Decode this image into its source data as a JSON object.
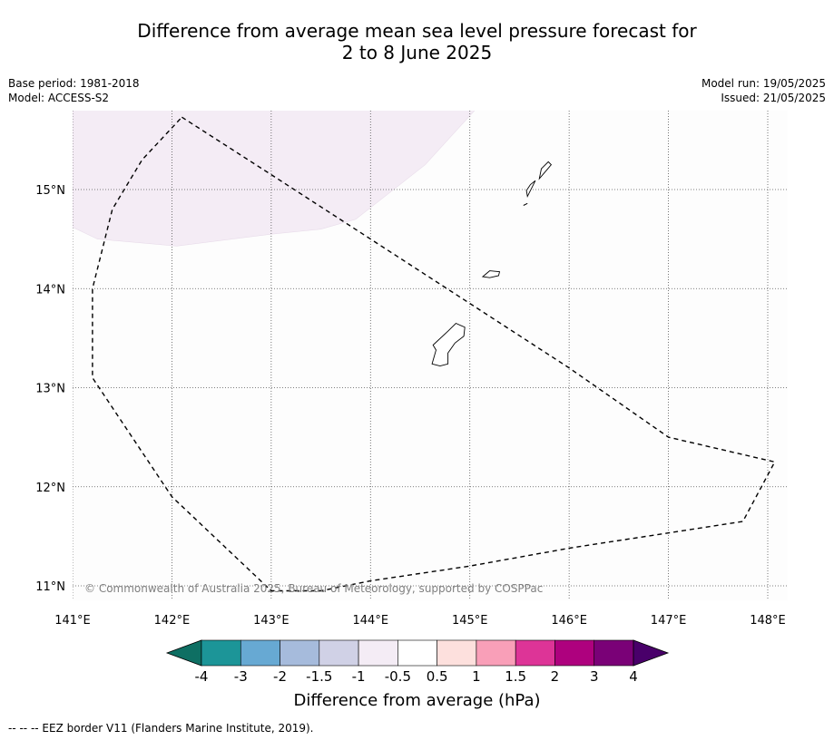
{
  "title": {
    "line1": "Difference from average mean sea level pressure forecast for",
    "line2": "2 to 8 June 2025"
  },
  "meta_left": {
    "base_period": "Base period: 1981-2018",
    "model": "Model: ACCESS-S2"
  },
  "meta_right": {
    "model_run": "Model run: 19/05/2025",
    "issued": "Issued: 21/05/2025"
  },
  "map": {
    "lon_range": [
      141.0,
      148.2
    ],
    "lat_range": [
      10.75,
      15.8
    ],
    "lon_ticks": [
      {
        "value": 141,
        "label": "141°E"
      },
      {
        "value": 142,
        "label": "142°E"
      },
      {
        "value": 143,
        "label": "143°E"
      },
      {
        "value": 144,
        "label": "144°E"
      },
      {
        "value": 145,
        "label": "145°E"
      },
      {
        "value": 146,
        "label": "146°E"
      },
      {
        "value": 147,
        "label": "147°E"
      },
      {
        "value": 148,
        "label": "148°E"
      }
    ],
    "lat_ticks": [
      {
        "value": 15,
        "label": "15°N"
      },
      {
        "value": 14,
        "label": "14°N"
      },
      {
        "value": 13,
        "label": "13°N"
      },
      {
        "value": 12,
        "label": "12°N"
      },
      {
        "value": 11,
        "label": "11°N"
      }
    ],
    "gridlines": true,
    "copyright": "© Commonwealth of Australia 2025, Bureau of Meteorology, supported by COSPPac",
    "anomaly_region": {
      "category": "-1 to -0.5",
      "color": "#f4ecf5",
      "lonlat": [
        [
          141.0,
          15.8
        ],
        [
          145.05,
          15.8
        ],
        [
          144.55,
          15.25
        ],
        [
          143.85,
          14.7
        ],
        [
          143.5,
          14.6
        ],
        [
          143.0,
          14.55
        ],
        [
          142.05,
          14.43
        ],
        [
          141.25,
          14.5
        ],
        [
          141.0,
          14.62
        ]
      ]
    },
    "eez_boundary": [
      [
        142.1,
        15.73
      ],
      [
        143.0,
        15.15
      ],
      [
        144.0,
        14.5
      ],
      [
        145.0,
        13.85
      ],
      [
        146.0,
        13.2
      ],
      [
        147.0,
        12.5
      ],
      [
        148.07,
        12.25
      ],
      [
        147.75,
        11.65
      ],
      [
        146.0,
        11.38
      ],
      [
        145.0,
        11.2
      ],
      [
        144.0,
        11.05
      ],
      [
        143.5,
        10.95
      ],
      [
        143.0,
        10.95
      ],
      [
        142.0,
        11.9
      ],
      [
        141.2,
        13.1
      ],
      [
        141.2,
        14.0
      ],
      [
        141.4,
        14.8
      ],
      [
        141.7,
        15.3
      ],
      [
        142.1,
        15.73
      ]
    ],
    "islands": [
      {
        "name": "Guam",
        "lonlat": [
          [
            144.62,
            13.24
          ],
          [
            144.66,
            13.38
          ],
          [
            144.63,
            13.43
          ],
          [
            144.78,
            13.57
          ],
          [
            144.86,
            13.65
          ],
          [
            144.95,
            13.61
          ],
          [
            144.94,
            13.52
          ],
          [
            144.85,
            13.45
          ],
          [
            144.78,
            13.35
          ],
          [
            144.78,
            13.24
          ],
          [
            144.7,
            13.22
          ],
          [
            144.62,
            13.24
          ]
        ]
      },
      {
        "name": "Rota",
        "lonlat": [
          [
            145.13,
            14.12
          ],
          [
            145.2,
            14.18
          ],
          [
            145.3,
            14.17
          ],
          [
            145.29,
            14.13
          ],
          [
            145.2,
            14.11
          ],
          [
            145.13,
            14.12
          ]
        ]
      },
      {
        "name": "Tinian",
        "lonlat": [
          [
            145.58,
            14.93
          ],
          [
            145.63,
            15.03
          ],
          [
            145.66,
            15.09
          ],
          [
            145.61,
            15.05
          ],
          [
            145.57,
            14.99
          ],
          [
            145.58,
            14.93
          ]
        ]
      },
      {
        "name": "Saipan",
        "lonlat": [
          [
            145.7,
            15.11
          ],
          [
            145.72,
            15.21
          ],
          [
            145.79,
            15.28
          ],
          [
            145.82,
            15.25
          ],
          [
            145.76,
            15.18
          ],
          [
            145.7,
            15.11
          ]
        ]
      },
      {
        "name": "Aguijan",
        "lonlat": [
          [
            145.54,
            14.84
          ],
          [
            145.58,
            14.86
          ]
        ]
      }
    ]
  },
  "colorbar": {
    "label": "Difference from average (hPa)",
    "ticks": [
      "-4",
      "-3",
      "-2",
      "-1.5",
      "-1",
      "-0.5",
      "0.5",
      "1",
      "1.5",
      "2",
      "3",
      "4"
    ],
    "colors": [
      "#0e6f63",
      "#1c9598",
      "#67a9d3",
      "#a6bbdc",
      "#d0d1e6",
      "#f4ecf5",
      "#ffffff",
      "#fde0dd",
      "#f99fb8",
      "#dd3497",
      "#ae017e",
      "#7a0177",
      "#49006a"
    ]
  },
  "footer": "--  --  -- EEZ border V11 (Flanders Marine Institute, 2019)."
}
